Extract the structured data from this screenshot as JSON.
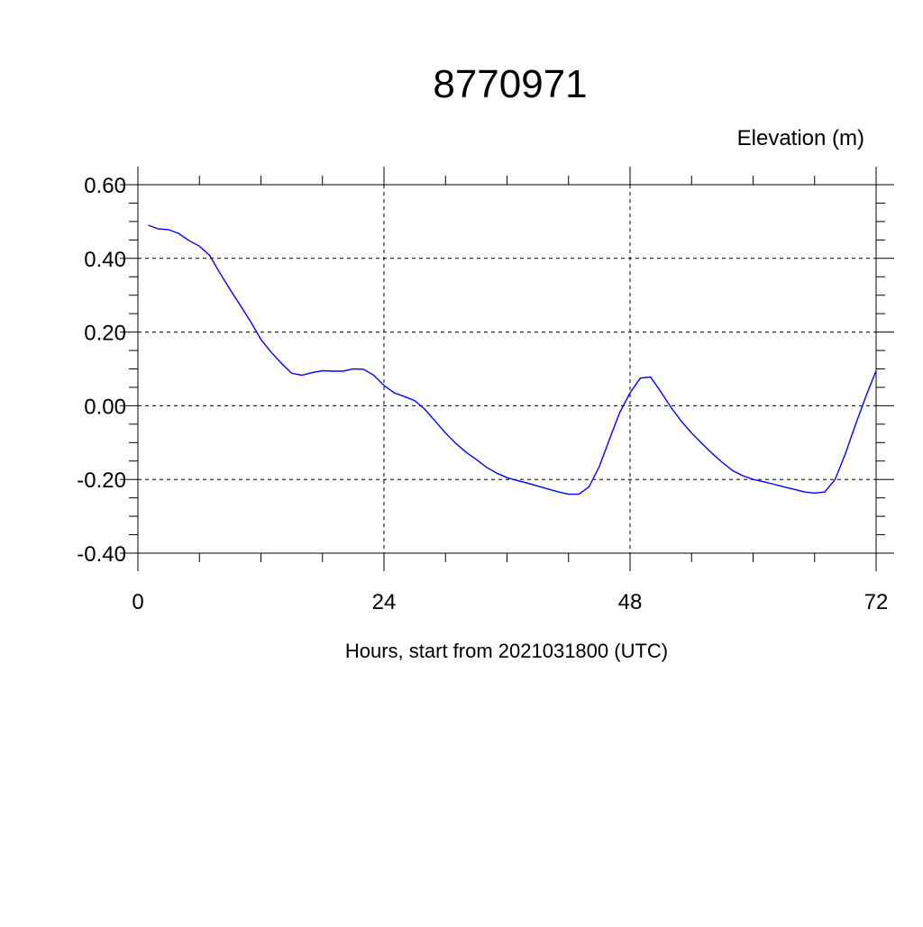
{
  "chart_data": {
    "type": "line",
    "title": "8770971",
    "unit_label": "Elevation (m)",
    "xlabel": "Hours, start from 2021031800 (UTC)",
    "xlim": [
      0,
      72
    ],
    "ylim": [
      -0.4,
      0.6
    ],
    "xticks": [
      0,
      24,
      48,
      72
    ],
    "xtick_labels": [
      "0",
      "24",
      "48",
      "72"
    ],
    "x_minor_step": 6,
    "yticks": [
      -0.4,
      -0.2,
      0.0,
      0.2,
      0.4,
      0.6
    ],
    "ytick_labels": [
      "-0.40",
      "-0.20",
      "0.00",
      "0.20",
      "0.40",
      "0.60"
    ],
    "y_minor_step": 0.05,
    "grid": true,
    "series": [
      {
        "color": "#0000ff",
        "x": [
          1,
          2,
          3,
          4,
          5,
          6,
          7,
          8,
          9,
          10,
          11,
          12,
          13,
          14,
          15,
          16,
          17,
          18,
          19,
          20,
          21,
          22,
          23,
          24,
          25,
          26,
          27,
          28,
          29,
          30,
          31,
          32,
          33,
          34,
          35,
          36,
          37,
          38,
          39,
          40,
          41,
          42,
          43,
          44,
          45,
          46,
          47,
          48,
          49,
          50,
          51,
          52,
          53,
          54,
          55,
          56,
          57,
          58,
          59,
          60,
          61,
          62,
          63,
          64,
          65,
          66,
          67,
          68,
          69,
          70,
          71,
          72
        ],
        "y": [
          0.49,
          0.48,
          0.478,
          0.467,
          0.448,
          0.433,
          0.408,
          0.36,
          0.315,
          0.272,
          0.228,
          0.18,
          0.145,
          0.115,
          0.088,
          0.083,
          0.09,
          0.095,
          0.094,
          0.094,
          0.1,
          0.099,
          0.083,
          0.055,
          0.035,
          0.025,
          0.014,
          -0.01,
          -0.042,
          -0.074,
          -0.102,
          -0.126,
          -0.146,
          -0.167,
          -0.183,
          -0.195,
          -0.203,
          -0.21,
          -0.218,
          -0.226,
          -0.234,
          -0.24,
          -0.24,
          -0.22,
          -0.165,
          -0.09,
          -0.018,
          0.035,
          0.075,
          0.078,
          0.038,
          -0.005,
          -0.042,
          -0.074,
          -0.102,
          -0.129,
          -0.154,
          -0.176,
          -0.19,
          -0.2,
          -0.206,
          -0.213,
          -0.22,
          -0.227,
          -0.234,
          -0.237,
          -0.234,
          -0.2,
          -0.13,
          -0.05,
          0.025,
          0.095
        ]
      }
    ]
  }
}
